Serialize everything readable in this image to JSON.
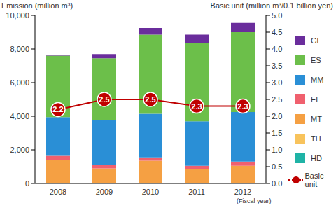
{
  "chart_data": {
    "type": "bar",
    "stacked": true,
    "grid": false,
    "legend": "right",
    "ylabel": "Emission (million m³)",
    "y2label": "Basic unit (million m³/0.1 billion yen)",
    "xlabel": "(Fiscal year)",
    "categories": [
      "2008",
      "2009",
      "2010",
      "2011",
      "2012"
    ],
    "ylim": [
      0,
      10000
    ],
    "yticks": [
      0,
      {
        "value": 2000,
        "label": "2,000"
      },
      {
        "value": 4000,
        "label": "4,000"
      },
      {
        "value": 6000,
        "label": "6,000"
      },
      {
        "value": 8000,
        "label": "8,000"
      },
      {
        "value": 10000,
        "label": "10,000"
      }
    ],
    "y2lim": [
      0,
      5
    ],
    "y2ticks": [
      {
        "value": 0,
        "label": "0.0"
      },
      {
        "value": 0.5,
        "label": "0.5"
      },
      {
        "value": 1,
        "label": "1.0"
      },
      {
        "value": 1.5,
        "label": "1.5"
      },
      {
        "value": 2,
        "label": "2.0"
      },
      {
        "value": 2.5,
        "label": "2.5"
      },
      {
        "value": 3,
        "label": "3.0"
      },
      {
        "value": 3.5,
        "label": "3.5"
      },
      {
        "value": 4,
        "label": "4.0"
      },
      {
        "value": 4.5,
        "label": "4.5"
      },
      {
        "value": 5,
        "label": "5.0"
      }
    ],
    "series": [
      {
        "name": "HD",
        "color": "#1fb3a6",
        "values": [
          20,
          20,
          20,
          20,
          20
        ]
      },
      {
        "name": "TH",
        "color": "#f8c35c",
        "values": [
          20,
          20,
          20,
          20,
          20
        ]
      },
      {
        "name": "MT",
        "color": "#f5a043",
        "values": [
          1360,
          860,
          1310,
          810,
          1010
        ]
      },
      {
        "name": "EL",
        "color": "#f0606e",
        "values": [
          250,
          200,
          200,
          200,
          250
        ]
      },
      {
        "name": "MM",
        "color": "#2a8fd6",
        "values": [
          2300,
          2650,
          2600,
          2650,
          2950
        ]
      },
      {
        "name": "ES",
        "color": "#6cbf4a",
        "values": [
          3650,
          3700,
          4700,
          4650,
          4750
        ]
      },
      {
        "name": "GL",
        "color": "#6a2d9c",
        "values": [
          50,
          250,
          400,
          500,
          550
        ]
      },
      {
        "name": "Basic unit",
        "type": "line",
        "axis": "y2",
        "color": "#c00000",
        "marker": "circle",
        "data_labels": true,
        "values": [
          2.2,
          2.5,
          2.5,
          2.3,
          2.3
        ]
      }
    ]
  }
}
